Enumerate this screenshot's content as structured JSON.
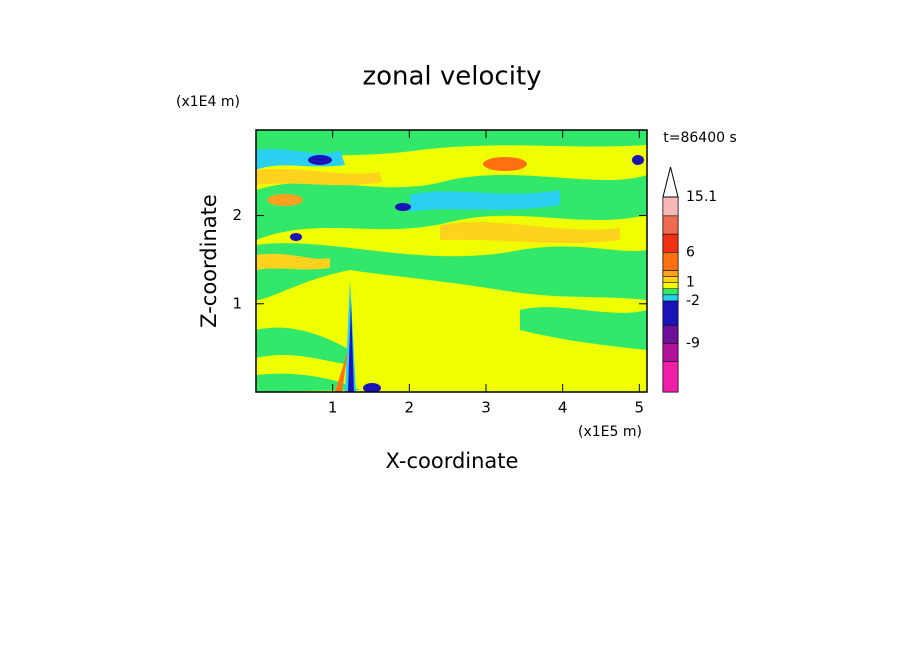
{
  "chart_data": {
    "type": "contour",
    "title": "zonal velocity",
    "x_label": "X-coordinate",
    "y_label": "Z-coordinate",
    "x_unit": "(x1E5 m)",
    "y_unit": "(x1E4 m)",
    "annotation": "t=86400 s",
    "xlim": [
      0,
      5.1
    ],
    "xticks": [
      1,
      2,
      3,
      4,
      5
    ],
    "ylim": [
      0,
      2.97
    ],
    "yticks": [
      1,
      2
    ],
    "colorbar": {
      "lim": [
        -17,
        15.1
      ],
      "levels": [
        -12,
        -9,
        -6,
        -2,
        -1,
        0,
        1,
        2,
        3,
        6,
        9,
        12,
        15.1
      ],
      "colors": [
        "#f01fa8",
        "#b2139d",
        "#6e0f99",
        "#1a14b8",
        "#2ad0f0",
        "#32e86a",
        "#f0ff00",
        "#ffd21e",
        "#ffa020",
        "#ff7010",
        "#f03010",
        "#f06a50",
        "#f7b8b8",
        "#ffffff"
      ],
      "ticks": [
        15.1,
        6,
        1,
        -2,
        -9
      ]
    }
  }
}
